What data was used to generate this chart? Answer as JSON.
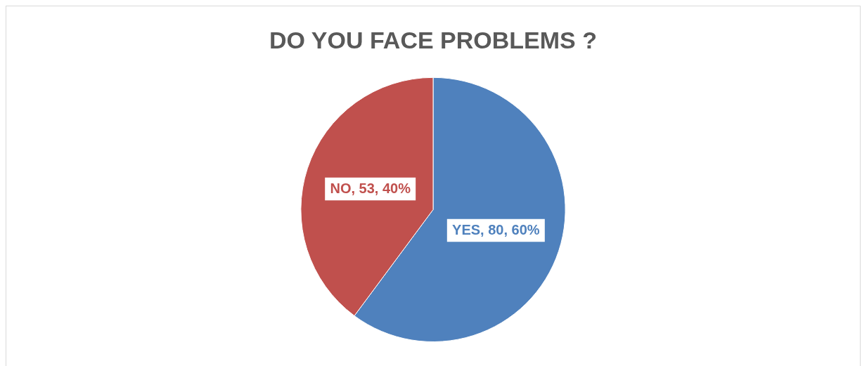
{
  "chart_data": {
    "type": "pie",
    "title": "DO YOU FACE PROBLEMS ?",
    "categories": [
      "YES",
      "NO"
    ],
    "values": [
      80,
      53
    ],
    "colors": [
      "#4f81bd",
      "#c0504d"
    ],
    "value_labels": [
      ", 80, 60%",
      ", 53, 40%"
    ],
    "legend": false
  }
}
